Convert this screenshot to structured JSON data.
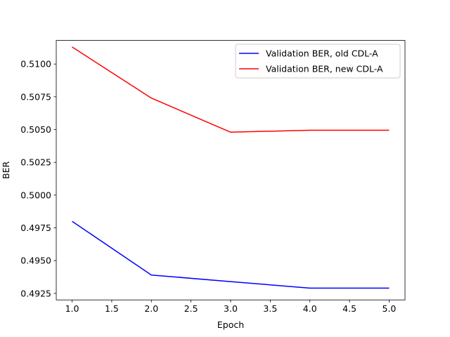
{
  "chart_data": {
    "type": "line",
    "title": "",
    "xlabel": "Epoch",
    "ylabel": "BER",
    "xlim": [
      0.8,
      5.2
    ],
    "ylim": [
      0.492,
      0.5118
    ],
    "xticks": [
      1.0,
      1.5,
      2.0,
      2.5,
      3.0,
      3.5,
      4.0,
      4.5,
      5.0
    ],
    "xtick_labels": [
      "1.0",
      "1.5",
      "2.0",
      "2.5",
      "3.0",
      "3.5",
      "4.0",
      "4.5",
      "5.0"
    ],
    "yticks": [
      0.4925,
      0.495,
      0.4975,
      0.5,
      0.5025,
      0.505,
      0.5075,
      0.51
    ],
    "ytick_labels": [
      "0.4925",
      "0.4950",
      "0.4975",
      "0.5000",
      "0.5025",
      "0.5050",
      "0.5075",
      "0.5100"
    ],
    "grid": false,
    "legend_position": "top-right",
    "x": [
      1,
      2,
      3,
      4,
      5
    ],
    "series": [
      {
        "name": "Validation BER, old CDL-A",
        "color": "#0000ff",
        "values": [
          0.498,
          0.4939,
          0.4934,
          0.4929,
          0.4929
        ]
      },
      {
        "name": "Validation BER, new CDL-A",
        "color": "#ff0000",
        "values": [
          0.5113,
          0.5074,
          0.5048,
          0.50495,
          0.50495
        ]
      }
    ]
  }
}
